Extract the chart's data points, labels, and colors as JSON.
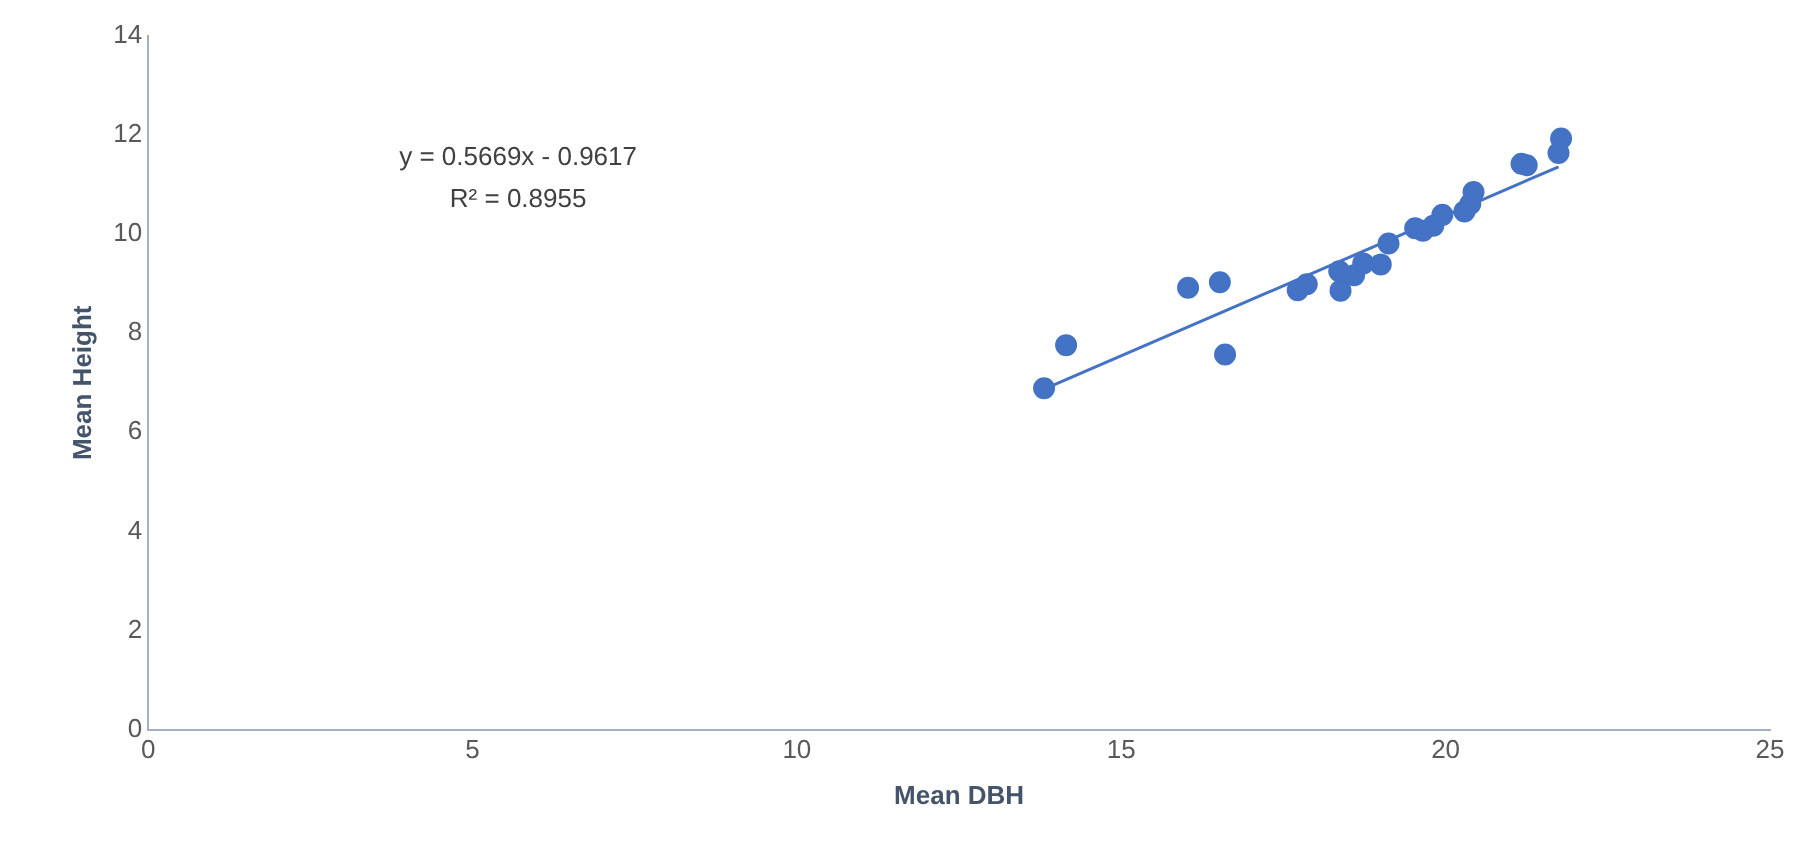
{
  "chart_data": {
    "type": "scatter",
    "xlabel": "Mean DBH",
    "ylabel": "Mean Height",
    "marker": "circle",
    "grid": false,
    "legend": false,
    "xlim": [
      0,
      25
    ],
    "xticks": [
      0,
      5,
      10,
      15,
      20,
      25
    ],
    "ylim": [
      0,
      14
    ],
    "yticks": [
      0,
      2,
      4,
      6,
      8,
      10,
      12,
      14
    ],
    "annotations": [
      "y = 0.5669x - 0.9617",
      "R² = 0.8955"
    ],
    "series": [
      {
        "color": "#4472c4",
        "x": [
          13.81,
          14.15,
          16.03,
          16.52,
          16.6,
          17.72,
          17.86,
          18.38,
          18.36,
          18.59,
          18.73,
          19.0,
          19.12,
          19.53,
          19.65,
          19.81,
          19.95,
          20.29,
          20.38,
          20.43,
          21.17,
          21.25,
          21.74,
          21.78
        ],
        "values": [
          6.89,
          7.76,
          8.92,
          9.03,
          7.57,
          8.87,
          8.99,
          8.86,
          9.25,
          9.17,
          9.41,
          9.39,
          9.81,
          10.12,
          10.07,
          10.17,
          10.39,
          10.46,
          10.61,
          10.85,
          11.42,
          11.39,
          11.64,
          11.93
        ]
      },
      {
        "type": "line",
        "color": "#4472c4",
        "x": [
          13.81,
          21.74
        ],
        "values": [
          6.87,
          11.36
        ],
        "marker": "none"
      }
    ]
  }
}
